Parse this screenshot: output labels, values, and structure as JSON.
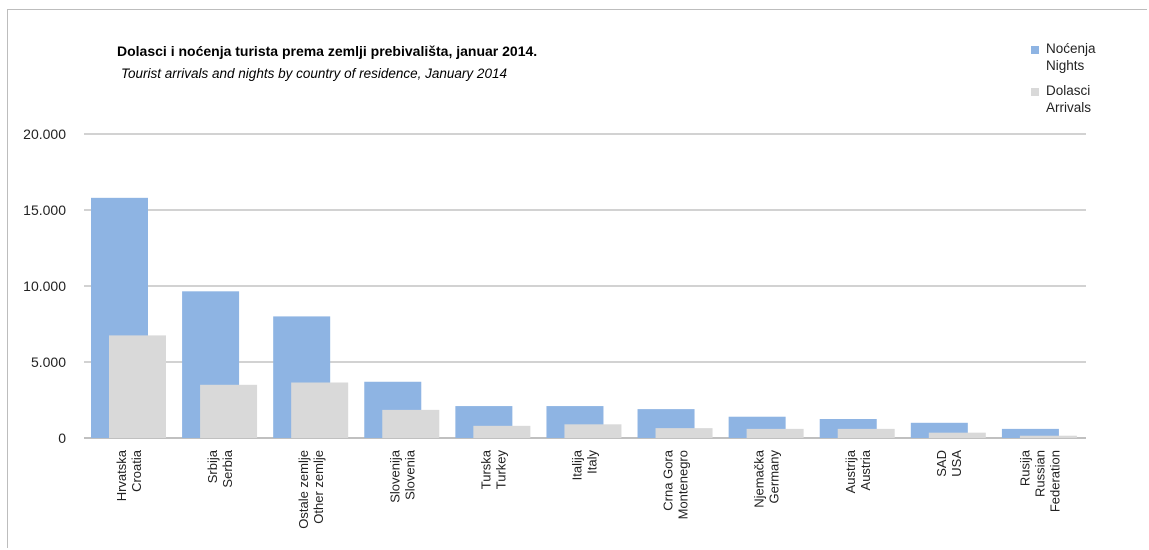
{
  "chart_data": {
    "type": "bar",
    "title": "Dolasci i noćenja turista prema zemlji prebivališta,  januar  2014.",
    "subtitle": "Tourist arrivals and nights by country of residence,  January 2014",
    "categories": [
      [
        "Hrvatska",
        "Croatia"
      ],
      [
        "Srbija",
        "Serbia"
      ],
      [
        "Ostale zemlje",
        "Other zemlje"
      ],
      [
        "Slovenija",
        "Slovenia"
      ],
      [
        "Turska",
        "Turkey"
      ],
      [
        "Italija",
        "Italy"
      ],
      [
        "Crna Gora",
        "Montenegro"
      ],
      [
        "Njemačka",
        "Germany"
      ],
      [
        "Austrija",
        "Austria"
      ],
      [
        "SAD",
        "USA"
      ],
      [
        "Rusija",
        "Russian",
        "Federation"
      ]
    ],
    "series": [
      {
        "name": [
          "Noćenja",
          "Nights"
        ],
        "color": "#8eb4e3",
        "values": [
          15800,
          9650,
          8000,
          3700,
          2100,
          2100,
          1900,
          1400,
          1250,
          1000,
          600
        ]
      },
      {
        "name": [
          "Dolasci",
          "Arrivals"
        ],
        "color": "#d9d9d9",
        "values": [
          6750,
          3500,
          3650,
          1850,
          800,
          900,
          650,
          600,
          600,
          350,
          150
        ]
      }
    ],
    "ylim": [
      0,
      20000
    ],
    "yticks": [
      {
        "value": 0,
        "label": "0"
      },
      {
        "value": 5000,
        "label": "5.000"
      },
      {
        "value": 10000,
        "label": "10.000"
      },
      {
        "value": 15000,
        "label": "15.000"
      },
      {
        "value": 20000,
        "label": "20.000"
      }
    ],
    "grid": true,
    "legend_position": "top-right"
  }
}
